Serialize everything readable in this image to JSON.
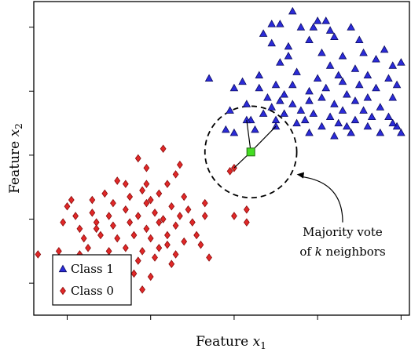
{
  "chart_data": {
    "type": "scatter",
    "xlabel_prefix": "Feature ",
    "xlabel_var": "x",
    "xlabel_sub": "1",
    "ylabel_prefix": "Feature ",
    "ylabel_var": "x",
    "ylabel_sub": "2",
    "xlim": [
      -0.4,
      4.1
    ],
    "ylim": [
      -0.5,
      4.4
    ],
    "xticks": [
      0,
      1,
      2,
      3,
      4
    ],
    "yticks": [
      0,
      1,
      2,
      3,
      4
    ],
    "grid": false,
    "legend_position": "bottom-left",
    "series": [
      {
        "name": "Class 1",
        "marker": "triangle",
        "color": "#2b2bd8",
        "points": [
          [
            2.7,
            4.25
          ],
          [
            2.55,
            4.05
          ],
          [
            3.0,
            4.1
          ],
          [
            2.35,
            3.9
          ],
          [
            2.8,
            4.0
          ],
          [
            3.1,
            4.1
          ],
          [
            3.4,
            4.0
          ],
          [
            2.45,
            3.75
          ],
          [
            2.9,
            3.8
          ],
          [
            3.2,
            3.85
          ],
          [
            3.5,
            3.8
          ],
          [
            2.65,
            3.55
          ],
          [
            3.05,
            3.6
          ],
          [
            3.3,
            3.55
          ],
          [
            3.55,
            3.6
          ],
          [
            3.8,
            3.65
          ],
          [
            2.55,
            3.45
          ],
          [
            2.75,
            3.3
          ],
          [
            3.15,
            3.4
          ],
          [
            3.45,
            3.35
          ],
          [
            3.7,
            3.5
          ],
          [
            3.9,
            3.4
          ],
          [
            4.0,
            3.45
          ],
          [
            1.7,
            3.2
          ],
          [
            2.1,
            3.15
          ],
          [
            2.3,
            3.25
          ],
          [
            2.0,
            3.05
          ],
          [
            2.3,
            3.05
          ],
          [
            2.5,
            3.1
          ],
          [
            2.6,
            2.95
          ],
          [
            2.7,
            3.1
          ],
          [
            2.9,
            3.0
          ],
          [
            3.0,
            3.2
          ],
          [
            3.1,
            3.05
          ],
          [
            3.3,
            3.15
          ],
          [
            3.5,
            3.1
          ],
          [
            3.7,
            3.05
          ],
          [
            3.85,
            3.2
          ],
          [
            3.95,
            3.1
          ],
          [
            2.4,
            2.9
          ],
          [
            2.45,
            2.75
          ],
          [
            2.55,
            2.85
          ],
          [
            2.7,
            2.8
          ],
          [
            2.9,
            2.85
          ],
          [
            3.05,
            2.9
          ],
          [
            3.2,
            2.8
          ],
          [
            3.35,
            2.95
          ],
          [
            3.45,
            2.85
          ],
          [
            3.55,
            2.7
          ],
          [
            3.6,
            2.9
          ],
          [
            3.75,
            2.75
          ],
          [
            3.9,
            2.9
          ],
          [
            2.15,
            2.8
          ],
          [
            2.35,
            2.65
          ],
          [
            2.6,
            2.65
          ],
          [
            2.8,
            2.7
          ],
          [
            2.95,
            2.65
          ],
          [
            3.15,
            2.6
          ],
          [
            3.3,
            2.7
          ],
          [
            3.45,
            2.55
          ],
          [
            3.65,
            2.6
          ],
          [
            3.85,
            2.6
          ],
          [
            2.2,
            2.55
          ],
          [
            2.5,
            2.55
          ],
          [
            2.75,
            2.5
          ],
          [
            3.05,
            2.45
          ],
          [
            3.25,
            2.5
          ],
          [
            3.6,
            2.45
          ],
          [
            3.95,
            2.45
          ],
          [
            2.9,
            2.35
          ],
          [
            3.2,
            2.3
          ],
          [
            3.4,
            2.35
          ],
          [
            3.75,
            2.35
          ],
          [
            1.95,
            2.7
          ],
          [
            2.0,
            2.35
          ],
          [
            2.15,
            2.55
          ],
          [
            2.25,
            2.4
          ],
          [
            2.5,
            2.45
          ],
          [
            4.0,
            2.35
          ],
          [
            2.85,
            2.55
          ],
          [
            3.35,
            2.45
          ],
          [
            2.45,
            4.05
          ],
          [
            2.95,
            4.0
          ],
          [
            3.25,
            3.25
          ],
          [
            2.65,
            3.7
          ],
          [
            3.15,
            3.95
          ],
          [
            3.6,
            3.25
          ],
          [
            3.9,
            2.5
          ],
          [
            1.9,
            2.4
          ]
        ]
      },
      {
        "name": "Class 0",
        "marker": "diamond",
        "color": "#e02828",
        "points": [
          [
            1.15,
            2.1
          ],
          [
            0.85,
            1.95
          ],
          [
            1.35,
            1.85
          ],
          [
            0.95,
            1.8
          ],
          [
            1.3,
            1.7
          ],
          [
            0.7,
            1.55
          ],
          [
            0.9,
            1.45
          ],
          [
            1.1,
            1.4
          ],
          [
            1.2,
            1.55
          ],
          [
            1.4,
            1.35
          ],
          [
            0.3,
            1.3
          ],
          [
            0.45,
            1.4
          ],
          [
            0.55,
            1.25
          ],
          [
            0.75,
            1.35
          ],
          [
            0.95,
            1.25
          ],
          [
            0.0,
            1.2
          ],
          [
            0.1,
            1.05
          ],
          [
            0.3,
            1.1
          ],
          [
            0.5,
            1.05
          ],
          [
            0.7,
            1.15
          ],
          [
            0.85,
            1.05
          ],
          [
            1.05,
            1.1
          ],
          [
            1.25,
            1.2
          ],
          [
            1.45,
            1.15
          ],
          [
            1.65,
            1.25
          ],
          [
            -0.05,
            0.95
          ],
          [
            0.15,
            0.85
          ],
          [
            0.35,
            0.95
          ],
          [
            0.55,
            0.9
          ],
          [
            0.75,
            0.95
          ],
          [
            0.95,
            0.85
          ],
          [
            1.1,
            0.95
          ],
          [
            1.3,
            0.9
          ],
          [
            1.5,
            0.95
          ],
          [
            1.65,
            1.05
          ],
          [
            0.2,
            0.7
          ],
          [
            0.4,
            0.75
          ],
          [
            0.6,
            0.7
          ],
          [
            0.8,
            0.75
          ],
          [
            1.0,
            0.7
          ],
          [
            1.2,
            0.75
          ],
          [
            1.4,
            0.65
          ],
          [
            0.25,
            0.55
          ],
          [
            0.5,
            0.5
          ],
          [
            0.7,
            0.55
          ],
          [
            0.9,
            0.5
          ],
          [
            1.1,
            0.55
          ],
          [
            1.3,
            0.45
          ],
          [
            0.45,
            0.35
          ],
          [
            0.65,
            0.3
          ],
          [
            0.85,
            0.35
          ],
          [
            1.05,
            0.4
          ],
          [
            1.25,
            0.3
          ],
          [
            0.55,
            0.15
          ],
          [
            0.8,
            0.15
          ],
          [
            1.0,
            0.1
          ],
          [
            0.35,
            0.05
          ],
          [
            0.65,
            -0.05
          ],
          [
            0.9,
            -0.1
          ],
          [
            0.4,
            -0.25
          ],
          [
            -0.35,
            0.45
          ],
          [
            -0.1,
            0.5
          ],
          [
            0.1,
            0.25
          ],
          [
            1.7,
            0.4
          ],
          [
            1.6,
            0.6
          ],
          [
            1.35,
            1.05
          ],
          [
            0.95,
            1.55
          ],
          [
            1.15,
            1.0
          ],
          [
            2.0,
            1.05
          ],
          [
            2.15,
            1.15
          ],
          [
            2.15,
            0.95
          ],
          [
            1.95,
            1.75
          ],
          [
            2.0,
            1.8
          ],
          [
            0.05,
            1.3
          ],
          [
            0.6,
            1.6
          ],
          [
            1.0,
            1.3
          ],
          [
            1.2,
            0.6
          ],
          [
            0.35,
            0.85
          ],
          [
            1.55,
            0.75
          ],
          [
            0.15,
            0.45
          ]
        ]
      },
      {
        "name": "Query point",
        "marker": "square",
        "color": "#44dd22",
        "points": [
          [
            2.2,
            2.05
          ]
        ]
      }
    ],
    "neighbor_links": [
      [
        2.2,
        2.05,
        2.15,
        2.55
      ],
      [
        2.2,
        2.05,
        2.5,
        2.45
      ],
      [
        2.2,
        2.05,
        2.0,
        1.8
      ]
    ],
    "circle": {
      "cx": 2.2,
      "cy": 2.05,
      "r": 0.55
    },
    "annotation": {
      "line1": "Majority vote",
      "line2_prefix": "of ",
      "line2_var": "k",
      "line2_suffix": " neighbors",
      "arrow_target": [
        2.75,
        1.7
      ],
      "text_anchor": [
        3.3,
        0.95
      ]
    },
    "legend": {
      "entries": [
        {
          "label": "Class 1",
          "marker": "triangle",
          "color": "#2b2bd8"
        },
        {
          "label": "Class 0",
          "marker": "diamond",
          "color": "#e02828"
        }
      ]
    }
  }
}
